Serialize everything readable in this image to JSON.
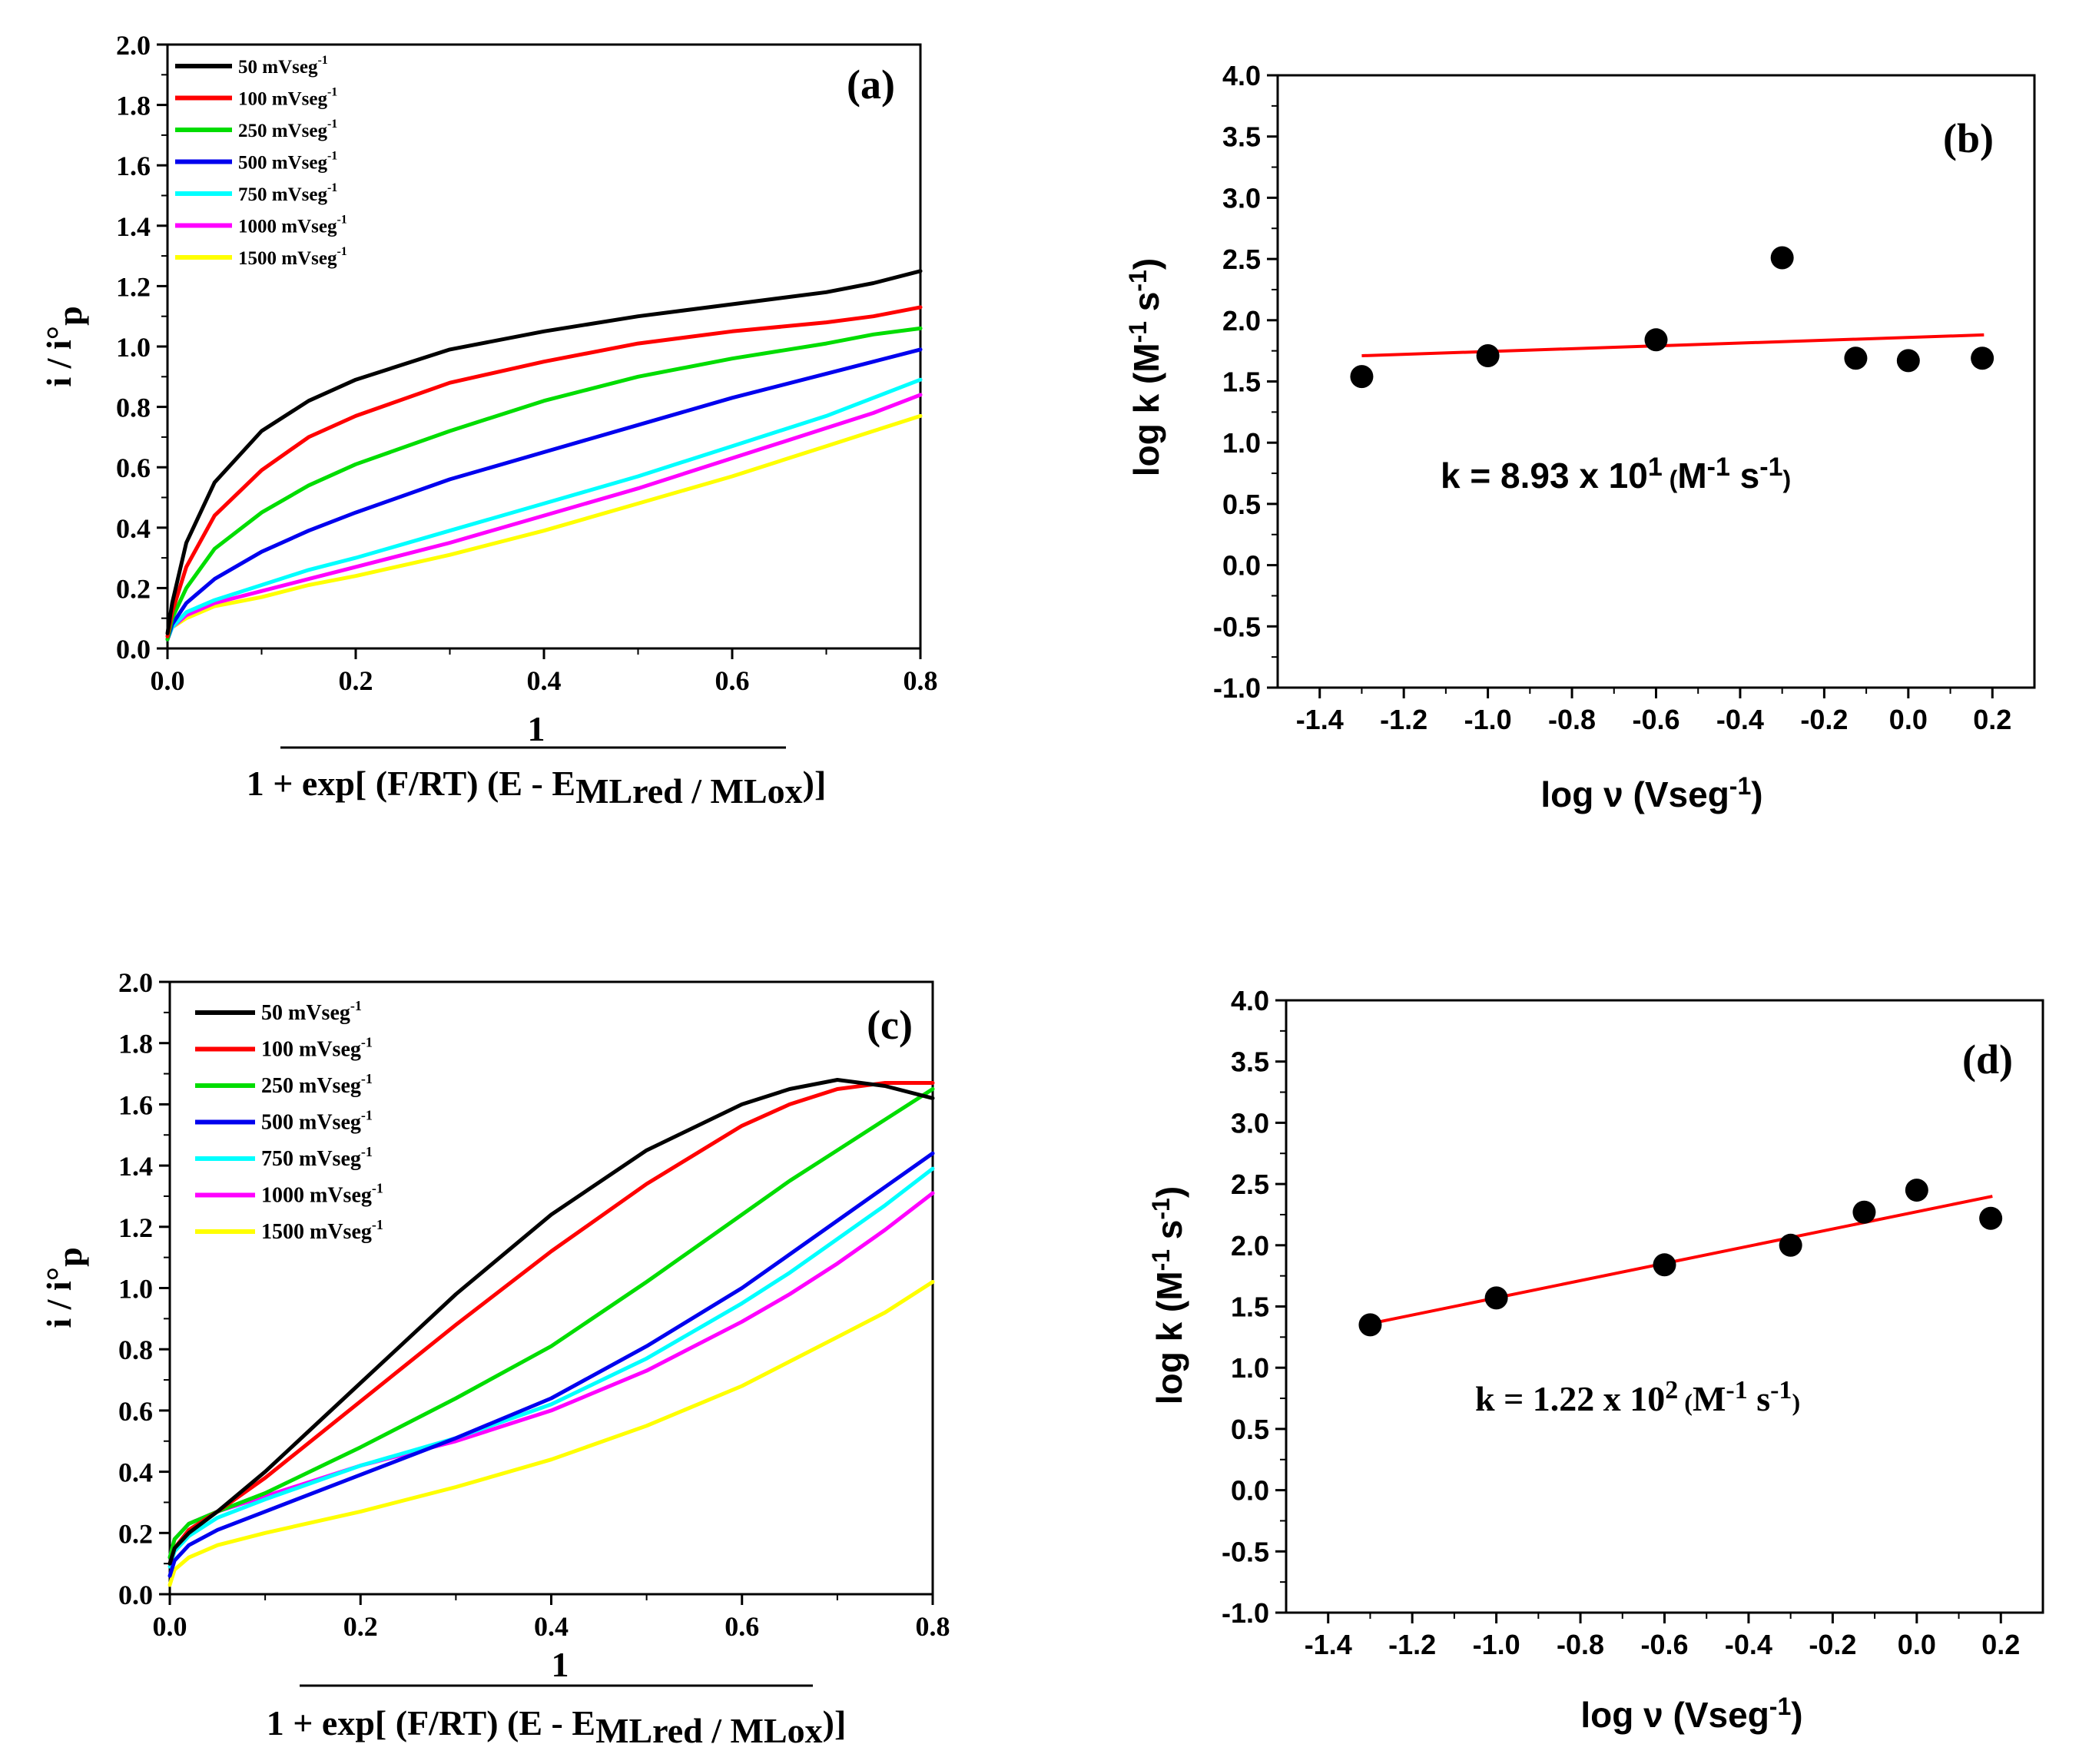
{
  "chart_data": [
    {
      "type": "line",
      "panel_label": "(a)",
      "xlabel_numerator": "1",
      "xlabel_denominator": "1 + exp[ (F/RT) (E - E",
      "xlabel_sub": "MLred / MLox",
      "xlabel_close": ")]",
      "ylabel": "i / i°",
      "ylabel_sub": "p",
      "xlim": [
        0.0,
        0.8
      ],
      "ylim": [
        0.0,
        2.0
      ],
      "xticks": [
        "0.0",
        "0.2",
        "0.4",
        "0.6",
        "0.8"
      ],
      "yticks": [
        "0.0",
        "0.2",
        "0.4",
        "0.6",
        "0.8",
        "1.0",
        "1.2",
        "1.4",
        "1.6",
        "1.8",
        "2.0"
      ],
      "legend_position": "top-left",
      "series": [
        {
          "name": "50 mVseg",
          "exp": "-1",
          "color": "#000000",
          "x": [
            0,
            0.005,
            0.02,
            0.05,
            0.1,
            0.15,
            0.2,
            0.3,
            0.4,
            0.5,
            0.6,
            0.7,
            0.75,
            0.8
          ],
          "y": [
            0.05,
            0.15,
            0.35,
            0.55,
            0.72,
            0.82,
            0.89,
            0.99,
            1.05,
            1.1,
            1.14,
            1.18,
            1.21,
            1.25
          ]
        },
        {
          "name": "100 mVseg",
          "exp": "-1",
          "color": "#ff0000",
          "x": [
            0,
            0.005,
            0.02,
            0.05,
            0.1,
            0.15,
            0.2,
            0.3,
            0.4,
            0.5,
            0.6,
            0.7,
            0.75,
            0.8
          ],
          "y": [
            0.04,
            0.12,
            0.27,
            0.44,
            0.59,
            0.7,
            0.77,
            0.88,
            0.95,
            1.01,
            1.05,
            1.08,
            1.1,
            1.13
          ]
        },
        {
          "name": "250 mVseg",
          "exp": "-1",
          "color": "#00dd00",
          "x": [
            0,
            0.005,
            0.02,
            0.05,
            0.1,
            0.15,
            0.2,
            0.3,
            0.4,
            0.5,
            0.6,
            0.7,
            0.75,
            0.8
          ],
          "y": [
            0.03,
            0.1,
            0.2,
            0.33,
            0.45,
            0.54,
            0.61,
            0.72,
            0.82,
            0.9,
            0.96,
            1.01,
            1.04,
            1.06
          ]
        },
        {
          "name": "500 mVseg",
          "exp": "-1",
          "color": "#0000ee",
          "x": [
            0,
            0.005,
            0.02,
            0.05,
            0.1,
            0.15,
            0.2,
            0.3,
            0.4,
            0.5,
            0.6,
            0.7,
            0.75,
            0.8
          ],
          "y": [
            0.03,
            0.08,
            0.15,
            0.23,
            0.32,
            0.39,
            0.45,
            0.56,
            0.65,
            0.74,
            0.83,
            0.91,
            0.95,
            0.99
          ]
        },
        {
          "name": "750 mVseg",
          "exp": "-1",
          "color": "#00ffff",
          "x": [
            0,
            0.005,
            0.02,
            0.05,
            0.1,
            0.15,
            0.2,
            0.3,
            0.4,
            0.5,
            0.6,
            0.7,
            0.75,
            0.8
          ],
          "y": [
            0.03,
            0.07,
            0.12,
            0.16,
            0.21,
            0.26,
            0.3,
            0.39,
            0.48,
            0.57,
            0.67,
            0.77,
            0.83,
            0.89
          ]
        },
        {
          "name": "1000 mVseg",
          "exp": "-1",
          "color": "#ff00ff",
          "x": [
            0,
            0.005,
            0.02,
            0.05,
            0.1,
            0.15,
            0.2,
            0.3,
            0.4,
            0.5,
            0.6,
            0.7,
            0.75,
            0.8
          ],
          "y": [
            0.03,
            0.07,
            0.11,
            0.15,
            0.19,
            0.23,
            0.27,
            0.35,
            0.44,
            0.53,
            0.63,
            0.73,
            0.78,
            0.84
          ]
        },
        {
          "name": "1500 mVseg",
          "exp": "-1",
          "color": "#ffff00",
          "x": [
            0,
            0.005,
            0.02,
            0.05,
            0.1,
            0.15,
            0.2,
            0.3,
            0.4,
            0.5,
            0.6,
            0.7,
            0.75,
            0.8
          ],
          "y": [
            0.03,
            0.07,
            0.1,
            0.14,
            0.17,
            0.21,
            0.24,
            0.31,
            0.39,
            0.48,
            0.57,
            0.67,
            0.72,
            0.77
          ]
        }
      ]
    },
    {
      "type": "scatter",
      "panel_label": "(b)",
      "xlabel": "log ν (Vseg",
      "xlabel_exp": "-1",
      "xlabel_close": ")",
      "ylabel": "log k (M",
      "ylabel_exp1": "-1",
      "ylabel_mid": " s",
      "ylabel_exp2": "-1",
      "ylabel_close": ")",
      "xlim": [
        -1.5,
        0.3
      ],
      "ylim": [
        -1.0,
        4.0
      ],
      "xticks": [
        "-1.4",
        "-1.2",
        "-1.0",
        "-0.8",
        "-0.6",
        "-0.4",
        "-0.2",
        "0.0",
        "0.2"
      ],
      "yticks": [
        "-1.0",
        "-0.5",
        "0.0",
        "0.5",
        "1.0",
        "1.5",
        "2.0",
        "2.5",
        "3.0",
        "3.5",
        "4.0"
      ],
      "points": {
        "x": [
          -1.3,
          -1.0,
          -0.6,
          -0.3,
          -0.125,
          0.0,
          0.176
        ],
        "y": [
          1.54,
          1.71,
          1.84,
          2.51,
          1.69,
          1.67,
          1.69
        ]
      },
      "fit_line": {
        "x": [
          -1.3,
          0.18
        ],
        "y": [
          1.71,
          1.88
        ],
        "color": "#ff0000"
      },
      "annotation": {
        "pre": "k = 8.93 x 10",
        "exp1": "1",
        "open": " (",
        "unit": "M",
        "exp2": "-1",
        "s": " s",
        "exp3": "-1",
        "close": ")"
      }
    },
    {
      "type": "line",
      "panel_label": "(c)",
      "xlabel_numerator": "1",
      "xlabel_denominator": "1 + exp[ (F/RT) (E - E",
      "xlabel_sub": "MLred / MLox",
      "xlabel_close": ")]",
      "ylabel": "i / i°",
      "ylabel_sub": "p",
      "xlim": [
        0.0,
        0.8
      ],
      "ylim": [
        0.0,
        2.0
      ],
      "xticks": [
        "0.0",
        "0.2",
        "0.4",
        "0.6",
        "0.8"
      ],
      "yticks": [
        "0.0",
        "0.2",
        "0.4",
        "0.6",
        "0.8",
        "1.0",
        "1.2",
        "1.4",
        "1.6",
        "1.8",
        "2.0"
      ],
      "legend_position": "top-left",
      "series": [
        {
          "name": "50 mVseg",
          "exp": "-1",
          "color": "#000000",
          "x": [
            0,
            0.005,
            0.02,
            0.05,
            0.1,
            0.2,
            0.3,
            0.4,
            0.5,
            0.6,
            0.65,
            0.7,
            0.75,
            0.8
          ],
          "y": [
            0.1,
            0.15,
            0.2,
            0.27,
            0.4,
            0.69,
            0.98,
            1.24,
            1.45,
            1.6,
            1.65,
            1.68,
            1.66,
            1.62
          ]
        },
        {
          "name": "100 mVseg",
          "exp": "-1",
          "color": "#ff0000",
          "x": [
            0,
            0.005,
            0.02,
            0.05,
            0.1,
            0.2,
            0.3,
            0.4,
            0.5,
            0.6,
            0.65,
            0.7,
            0.75,
            0.8
          ],
          "y": [
            0.1,
            0.15,
            0.21,
            0.27,
            0.38,
            0.63,
            0.88,
            1.12,
            1.34,
            1.53,
            1.6,
            1.65,
            1.67,
            1.67
          ]
        },
        {
          "name": "250 mVseg",
          "exp": "-1",
          "color": "#00dd00",
          "x": [
            0,
            0.005,
            0.02,
            0.05,
            0.1,
            0.2,
            0.3,
            0.4,
            0.5,
            0.6,
            0.65,
            0.7,
            0.75,
            0.8
          ],
          "y": [
            0.12,
            0.18,
            0.23,
            0.27,
            0.33,
            0.48,
            0.64,
            0.81,
            1.02,
            1.24,
            1.35,
            1.45,
            1.55,
            1.65
          ]
        },
        {
          "name": "500 mVseg",
          "exp": "-1",
          "color": "#0000ee",
          "x": [
            0,
            0.005,
            0.02,
            0.05,
            0.1,
            0.2,
            0.3,
            0.4,
            0.5,
            0.6,
            0.65,
            0.7,
            0.75,
            0.8
          ],
          "y": [
            0.06,
            0.11,
            0.16,
            0.21,
            0.27,
            0.39,
            0.51,
            0.64,
            0.81,
            1.0,
            1.11,
            1.22,
            1.33,
            1.44
          ]
        },
        {
          "name": "750 mVseg",
          "exp": "-1",
          "color": "#00ffff",
          "x": [
            0,
            0.005,
            0.02,
            0.05,
            0.1,
            0.2,
            0.3,
            0.4,
            0.5,
            0.6,
            0.65,
            0.7,
            0.75,
            0.8
          ],
          "y": [
            0.09,
            0.14,
            0.19,
            0.25,
            0.31,
            0.42,
            0.51,
            0.62,
            0.77,
            0.95,
            1.05,
            1.16,
            1.27,
            1.39
          ]
        },
        {
          "name": "1000 mVseg",
          "exp": "-1",
          "color": "#ff00ff",
          "x": [
            0,
            0.005,
            0.02,
            0.05,
            0.1,
            0.2,
            0.3,
            0.4,
            0.5,
            0.6,
            0.65,
            0.7,
            0.75,
            0.8
          ],
          "y": [
            0.12,
            0.18,
            0.23,
            0.27,
            0.32,
            0.42,
            0.5,
            0.6,
            0.73,
            0.89,
            0.98,
            1.08,
            1.19,
            1.31
          ]
        },
        {
          "name": "1500 mVseg",
          "exp": "-1",
          "color": "#ffff00",
          "x": [
            0,
            0.005,
            0.02,
            0.05,
            0.1,
            0.2,
            0.3,
            0.4,
            0.5,
            0.6,
            0.65,
            0.7,
            0.75,
            0.8
          ],
          "y": [
            0.03,
            0.08,
            0.12,
            0.16,
            0.2,
            0.27,
            0.35,
            0.44,
            0.55,
            0.68,
            0.76,
            0.84,
            0.92,
            1.02
          ]
        }
      ]
    },
    {
      "type": "scatter",
      "panel_label": "(d)",
      "xlabel": "log ν (Vseg",
      "xlabel_exp": "-1",
      "xlabel_close": ")",
      "ylabel": "log k (M",
      "ylabel_exp1": "-1",
      "ylabel_mid": " s",
      "ylabel_exp2": "-1",
      "ylabel_close": ")",
      "xlim": [
        -1.5,
        0.3
      ],
      "ylim": [
        -1.0,
        4.0
      ],
      "xticks": [
        "-1.4",
        "-1.2",
        "-1.0",
        "-0.8",
        "-0.6",
        "-0.4",
        "-0.2",
        "0.0",
        "0.2"
      ],
      "yticks": [
        "-1.0",
        "-0.5",
        "0.0",
        "0.5",
        "1.0",
        "1.5",
        "2.0",
        "2.5",
        "3.0",
        "3.5",
        "4.0"
      ],
      "points": {
        "x": [
          -1.3,
          -1.0,
          -0.6,
          -0.3,
          -0.125,
          0.0,
          0.176
        ],
        "y": [
          1.35,
          1.57,
          1.84,
          2.0,
          2.27,
          2.45,
          2.22
        ]
      },
      "fit_line": {
        "x": [
          -1.3,
          0.18
        ],
        "y": [
          1.36,
          2.4
        ],
        "color": "#ff0000"
      },
      "annotation": {
        "pre": "k = 1.22 x 10",
        "exp1": "2",
        "open": " (",
        "unit": "M",
        "exp2": "-1",
        "s": " s",
        "exp3": "-1",
        "close": ")"
      }
    }
  ]
}
